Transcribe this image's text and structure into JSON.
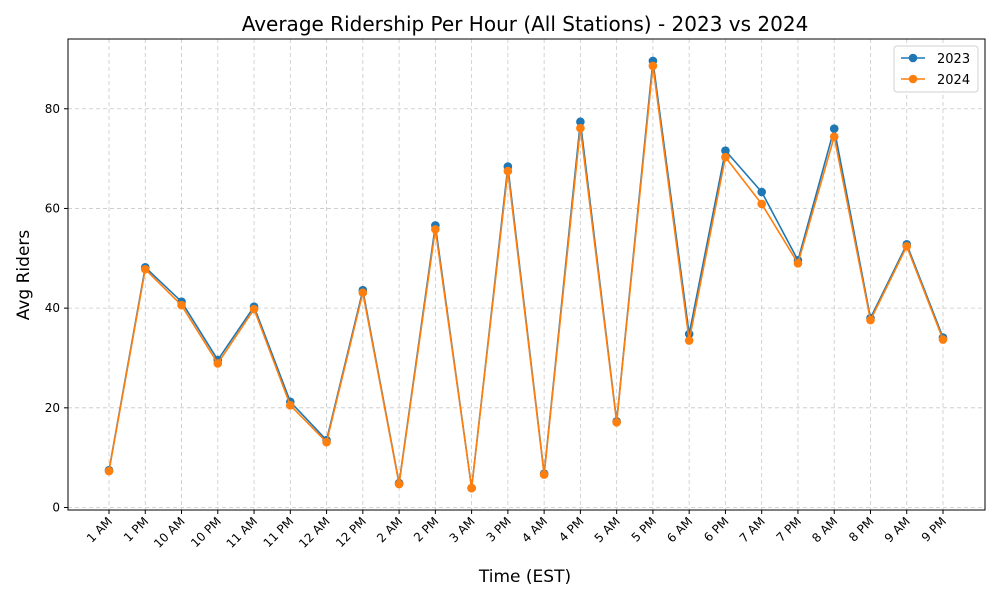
{
  "chart_data": {
    "type": "line",
    "title": "Average Ridership Per Hour (All Stations) - 2023 vs 2024",
    "xlabel": "Time (EST)",
    "ylabel": "Avg Riders",
    "categories": [
      "1 AM",
      "1 PM",
      "10 AM",
      "10 PM",
      "11 AM",
      "11 PM",
      "12 AM",
      "12 PM",
      "2 AM",
      "2 PM",
      "3 AM",
      "3 PM",
      "4 AM",
      "4 PM",
      "5 AM",
      "5 PM",
      "6 AM",
      "6 PM",
      "7 AM",
      "7 PM",
      "8 AM",
      "8 PM",
      "9 AM",
      "9 PM"
    ],
    "ylim": [
      -0.5,
      94
    ],
    "yticks": [
      0,
      20,
      40,
      60,
      80
    ],
    "grid": true,
    "legend_position": "top-right",
    "series": [
      {
        "name": "2023",
        "color": "#1f77b4",
        "values": [
          7.5,
          48.2,
          41.3,
          29.6,
          40.3,
          21.2,
          13.5,
          43.6,
          4.9,
          56.6,
          3.9,
          68.4,
          6.8,
          77.4,
          17.3,
          89.6,
          34.8,
          71.6,
          63.3,
          49.6,
          76.0,
          38.0,
          52.8,
          34.1
        ]
      },
      {
        "name": "2024",
        "color": "#ff7f0e",
        "values": [
          7.3,
          47.8,
          40.6,
          28.9,
          39.8,
          20.5,
          13.1,
          43.1,
          4.7,
          55.8,
          3.9,
          67.5,
          6.6,
          76.1,
          17.1,
          88.6,
          33.5,
          70.3,
          60.9,
          49.0,
          74.4,
          37.6,
          52.4,
          33.7
        ]
      }
    ]
  }
}
